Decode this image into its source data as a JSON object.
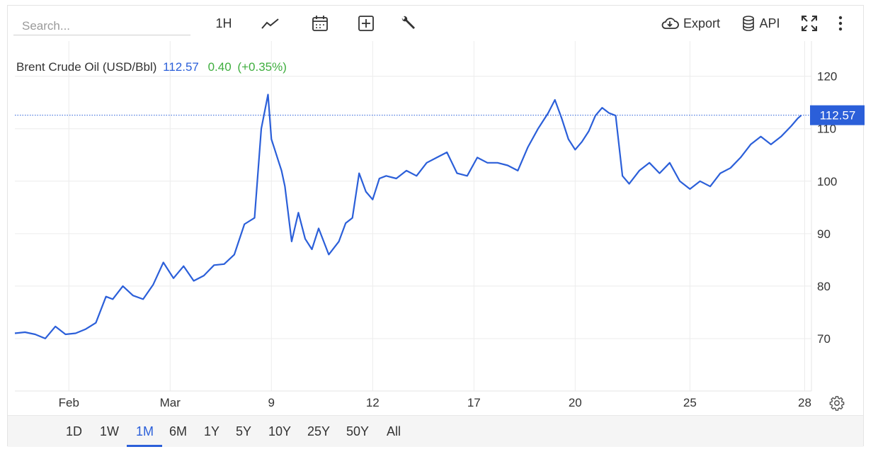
{
  "toolbar": {
    "search_placeholder": "Search...",
    "interval_label": "1H",
    "export_label": "Export",
    "api_label": "API",
    "icons": [
      "line-chart-icon",
      "calendar-icon",
      "plus-box-icon",
      "wrench-icon",
      "cloud-download-icon",
      "database-icon",
      "fullscreen-icon",
      "more-vertical-icon"
    ]
  },
  "legend": {
    "name": "Brent Crude Oil (USD/Bbl)",
    "last": "112.57",
    "change": "0.40",
    "change_pct": "(+0.35%)"
  },
  "colors": {
    "line": "#2b5fd9",
    "positive": "#3fae3f",
    "grid": "#ececec",
    "price_tag": "#2b5fd9"
  },
  "ranges": {
    "items": [
      "1D",
      "1W",
      "1M",
      "6M",
      "1Y",
      "5Y",
      "10Y",
      "25Y",
      "50Y",
      "All"
    ],
    "active": "1M"
  },
  "chart_data": {
    "type": "line",
    "title": "Brent Crude Oil (USD/Bbl)",
    "xlabel": "",
    "ylabel": "",
    "ylim": [
      60,
      124
    ],
    "yticks": [
      70,
      80,
      90,
      100,
      110,
      120
    ],
    "grid": true,
    "last_price_label": "112.57",
    "last_price": 112.57,
    "x_tick_labels": [
      {
        "label": "Feb",
        "x": 1.6
      },
      {
        "label": "Mar",
        "x": 4.6
      },
      {
        "label": "9",
        "x": 7.6
      },
      {
        "label": "12",
        "x": 10.6
      },
      {
        "label": "17",
        "x": 13.6
      },
      {
        "label": "20",
        "x": 16.6
      },
      {
        "label": "25",
        "x": 20
      },
      {
        "label": "28",
        "x": 23.4
      }
    ],
    "xlim": [
      0,
      23.6
    ],
    "series": [
      {
        "x": [
          0,
          0.3,
          0.6,
          0.9,
          1.2,
          1.5,
          1.8,
          2.1,
          2.4,
          2.7,
          2.9,
          3.2,
          3.5,
          3.8,
          4.1,
          4.4,
          4.7,
          5.0,
          5.3,
          5.6,
          5.9,
          6.2,
          6.5,
          6.8,
          7.1,
          7.3,
          7.5,
          7.6,
          7.7,
          7.8,
          7.9,
          8.0,
          8.2,
          8.4,
          8.6,
          8.8,
          9.0,
          9.3,
          9.6,
          9.8,
          10.0,
          10.2,
          10.4,
          10.6,
          10.8,
          11.0,
          11.3,
          11.6,
          11.9,
          12.2,
          12.5,
          12.8,
          13.1,
          13.4,
          13.7,
          14.0,
          14.3,
          14.6,
          14.9,
          15.2,
          15.5,
          15.8,
          16.0,
          16.2,
          16.4,
          16.6,
          16.8,
          17.0,
          17.2,
          17.4,
          17.6,
          17.8,
          18.0,
          18.2,
          18.5,
          18.8,
          19.1,
          19.4,
          19.7,
          20.0,
          20.3,
          20.6,
          20.9,
          21.2,
          21.5,
          21.8,
          22.1,
          22.4,
          22.7,
          23.0,
          23.2,
          23.3
        ],
        "values": [
          71.0,
          71.2,
          70.8,
          70.0,
          72.3,
          70.8,
          71.0,
          71.8,
          73.0,
          78.0,
          77.5,
          80.0,
          78.2,
          77.5,
          80.3,
          84.5,
          81.5,
          83.8,
          81.0,
          82.0,
          84.0,
          84.2,
          86.0,
          91.8,
          93.0,
          110.0,
          116.5,
          108.0,
          106.0,
          104.0,
          102.0,
          99.0,
          88.5,
          94.0,
          89.0,
          87.0,
          91.0,
          86.0,
          88.5,
          92.0,
          93.0,
          101.5,
          98.0,
          96.5,
          100.5,
          101.0,
          100.5,
          102.0,
          101.0,
          103.5,
          104.5,
          105.5,
          101.5,
          101.0,
          104.5,
          103.5,
          103.5,
          103.0,
          102.0,
          106.5,
          110.0,
          113.0,
          115.5,
          112.0,
          108.0,
          106.0,
          107.5,
          109.5,
          112.5,
          114.0,
          113.0,
          112.5,
          101.0,
          99.5,
          102.0,
          103.5,
          101.5,
          103.5,
          100.0,
          98.5,
          100.0,
          99.0,
          101.5,
          102.5,
          104.5,
          107.0,
          108.5,
          107.0,
          108.5,
          110.5,
          112.0,
          112.57
        ]
      }
    ]
  }
}
